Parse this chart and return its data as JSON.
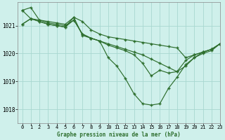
{
  "title": "Graphe pression niveau de la mer (hPa)",
  "bg_color": "#cff0eb",
  "line_color": "#2d6e2d",
  "grid_color": "#a8d8d0",
  "xlim": [
    -0.5,
    23
  ],
  "ylim": [
    1017.5,
    1021.85
  ],
  "yticks": [
    1018,
    1019,
    1020,
    1021
  ],
  "xticks": [
    0,
    1,
    2,
    3,
    4,
    5,
    6,
    7,
    8,
    9,
    10,
    11,
    12,
    13,
    14,
    15,
    16,
    17,
    18,
    19,
    20,
    21,
    22,
    23
  ],
  "series": [
    [
      1021.55,
      1021.65,
      1021.2,
      1021.15,
      1021.1,
      1021.05,
      1021.3,
      1021.15,
      1020.85,
      1020.7,
      1020.6,
      1020.55,
      1020.5,
      1020.45,
      1020.4,
      1020.35,
      1020.3,
      1020.25,
      1020.2,
      1019.85,
      1019.95,
      1020.05,
      1020.15,
      1020.35
    ],
    [
      1021.55,
      1021.25,
      1021.2,
      1021.1,
      1021.05,
      1021.0,
      1021.2,
      1020.7,
      1020.55,
      1020.45,
      1020.35,
      1020.25,
      1020.15,
      1020.05,
      1019.95,
      1019.8,
      1019.65,
      1019.5,
      1019.35,
      1019.75,
      1019.95,
      1020.05,
      1020.15,
      1020.35
    ],
    [
      1021.05,
      1021.25,
      1021.15,
      1021.05,
      1021.0,
      1020.95,
      1021.2,
      1020.7,
      1020.55,
      1020.45,
      1020.3,
      1020.2,
      1020.1,
      1019.95,
      1019.65,
      1019.2,
      1019.4,
      1019.3,
      1019.35,
      1019.55,
      1019.85,
      1020.05,
      1020.15,
      1020.35
    ],
    [
      1021.05,
      1021.25,
      1021.15,
      1021.05,
      1021.0,
      1020.95,
      1021.3,
      1020.65,
      1020.55,
      1020.45,
      1019.85,
      1019.55,
      1019.1,
      1018.55,
      1018.2,
      1018.15,
      1018.2,
      1018.75,
      1019.15,
      1019.6,
      1019.85,
      1020.0,
      1020.1,
      1020.35
    ]
  ]
}
